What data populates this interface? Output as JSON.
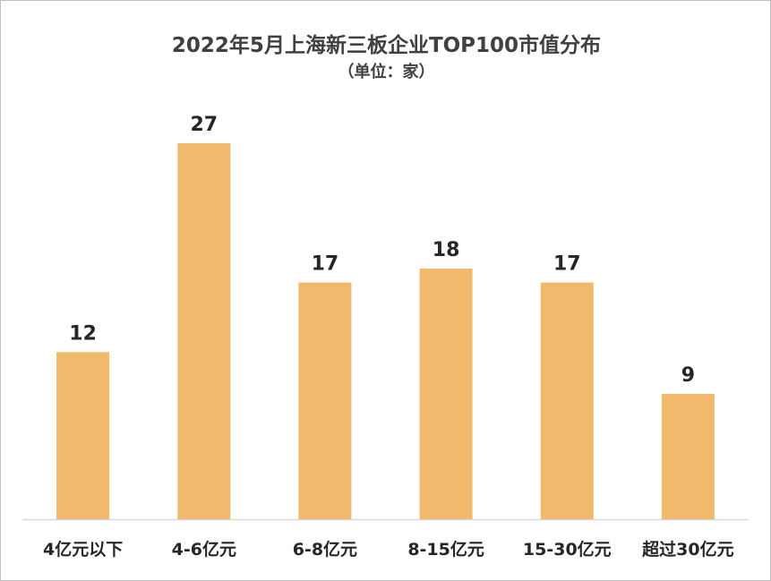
{
  "chart_data": {
    "type": "bar",
    "title": "2022年5月上海新三板企业TOP100市值分布",
    "subtitle": "（单位：家）",
    "categories": [
      "4亿元以下",
      "4-6亿元",
      "6-8亿元",
      "8-15亿元",
      "15-30亿元",
      "超过30亿元"
    ],
    "values": [
      12,
      27,
      17,
      18,
      17,
      9
    ],
    "ylim": [
      0,
      30
    ],
    "grid": false,
    "legend": "none",
    "bar_color": "#f0b96b",
    "axis_color": "#d9d9d9"
  }
}
